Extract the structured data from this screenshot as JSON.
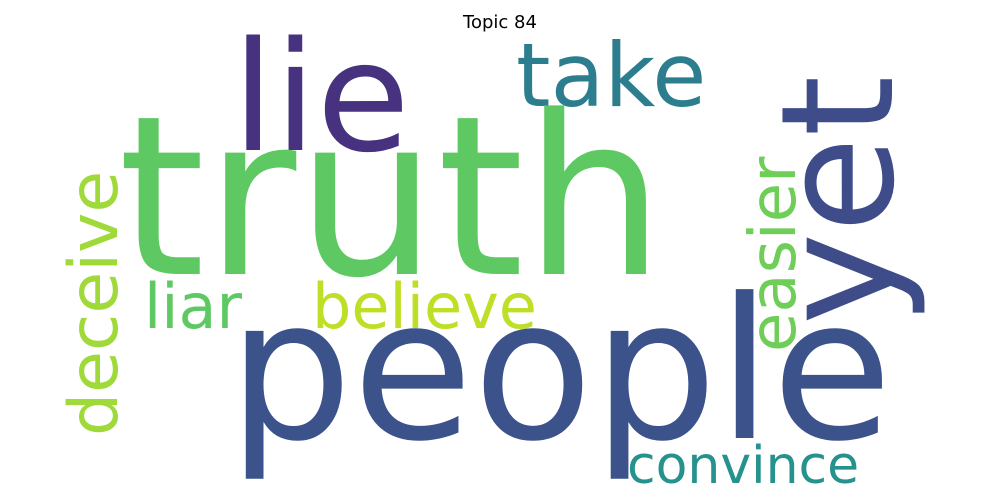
{
  "title": "Topic 84",
  "words": {
    "truth": {
      "text": "truth",
      "color": "#5ec962"
    },
    "people": {
      "text": "people",
      "color": "#3b528b"
    },
    "lie": {
      "text": "lie",
      "color": "#46327e"
    },
    "yet": {
      "text": "yet",
      "color": "#3e4c8a"
    },
    "take": {
      "text": "take",
      "color": "#2c7e8e"
    },
    "easier": {
      "text": "easier",
      "color": "#6ece58"
    },
    "deceive": {
      "text": "deceive",
      "color": "#9fda3a"
    },
    "believe": {
      "text": "believe",
      "color": "#bddf26"
    },
    "liar": {
      "text": "liar",
      "color": "#5ec962"
    },
    "convince": {
      "text": "convince",
      "color": "#26928e"
    }
  }
}
